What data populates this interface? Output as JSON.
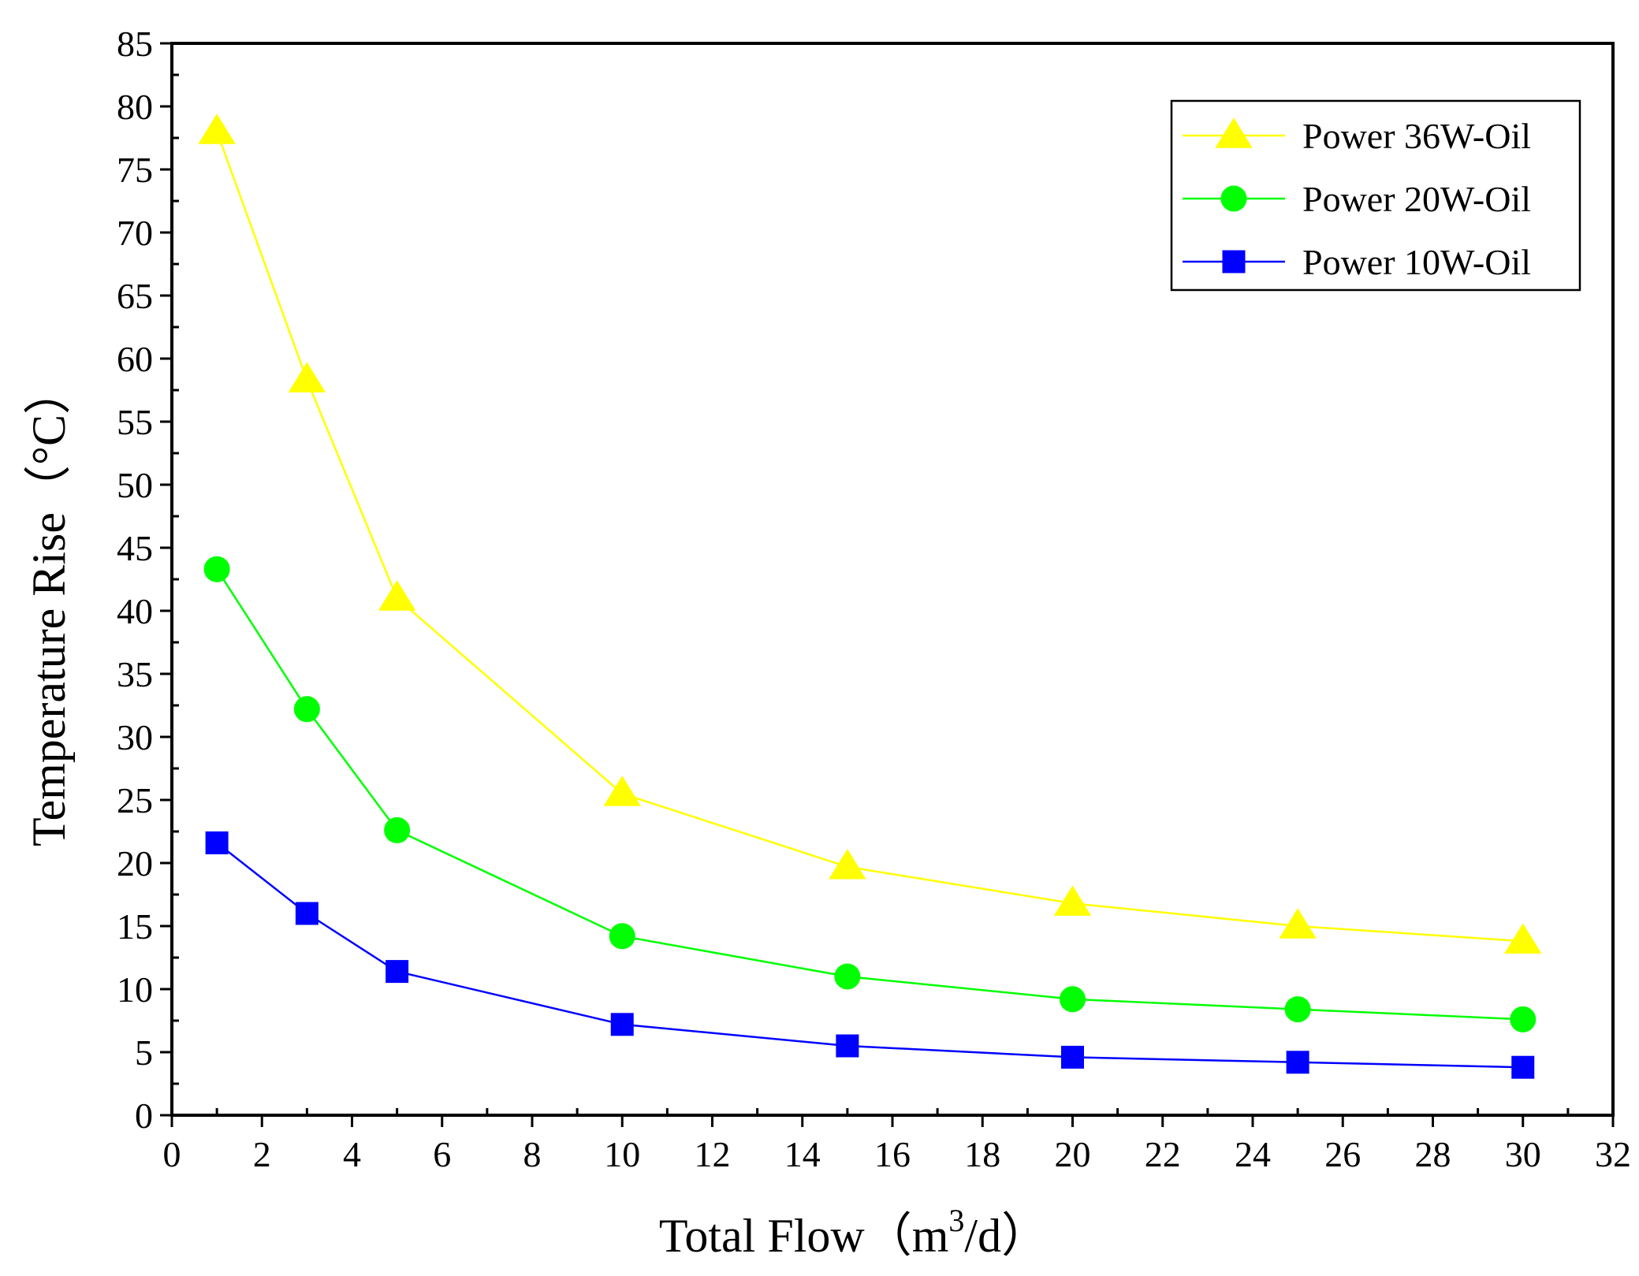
{
  "chart_data": {
    "type": "line",
    "title": "",
    "xlabel": "Total Flow",
    "xlabel_unit_prefix": "（m",
    "xlabel_unit_sup": "3",
    "xlabel_unit_suffix": "/d）",
    "ylabel": "Temperature Rise（°C）",
    "xlim": [
      0,
      32
    ],
    "ylim": [
      0,
      85
    ],
    "x_ticks": [
      0,
      2,
      4,
      6,
      8,
      10,
      12,
      14,
      16,
      18,
      20,
      22,
      24,
      26,
      28,
      30,
      32
    ],
    "y_ticks": [
      0,
      5,
      10,
      15,
      20,
      25,
      30,
      35,
      40,
      45,
      50,
      55,
      60,
      65,
      70,
      75,
      80,
      85
    ],
    "grid": false,
    "legend_position": "top-right",
    "x": [
      1,
      3,
      5,
      10,
      15,
      20,
      25,
      30
    ],
    "series": [
      {
        "name": "Power 36W-Oil",
        "color": "#FFFF00",
        "marker": "triangle",
        "values": [
          78.0,
          58.3,
          41.0,
          25.5,
          19.7,
          16.8,
          15.0,
          13.8
        ]
      },
      {
        "name": "Power 20W-Oil",
        "color": "#00FF00",
        "marker": "circle",
        "values": [
          43.3,
          32.2,
          22.6,
          14.2,
          11.0,
          9.2,
          8.4,
          7.6
        ]
      },
      {
        "name": "Power 10W-Oil",
        "color": "#0000FF",
        "marker": "square",
        "values": [
          21.6,
          16.0,
          11.4,
          7.2,
          5.5,
          4.6,
          4.2,
          3.8
        ]
      }
    ]
  }
}
